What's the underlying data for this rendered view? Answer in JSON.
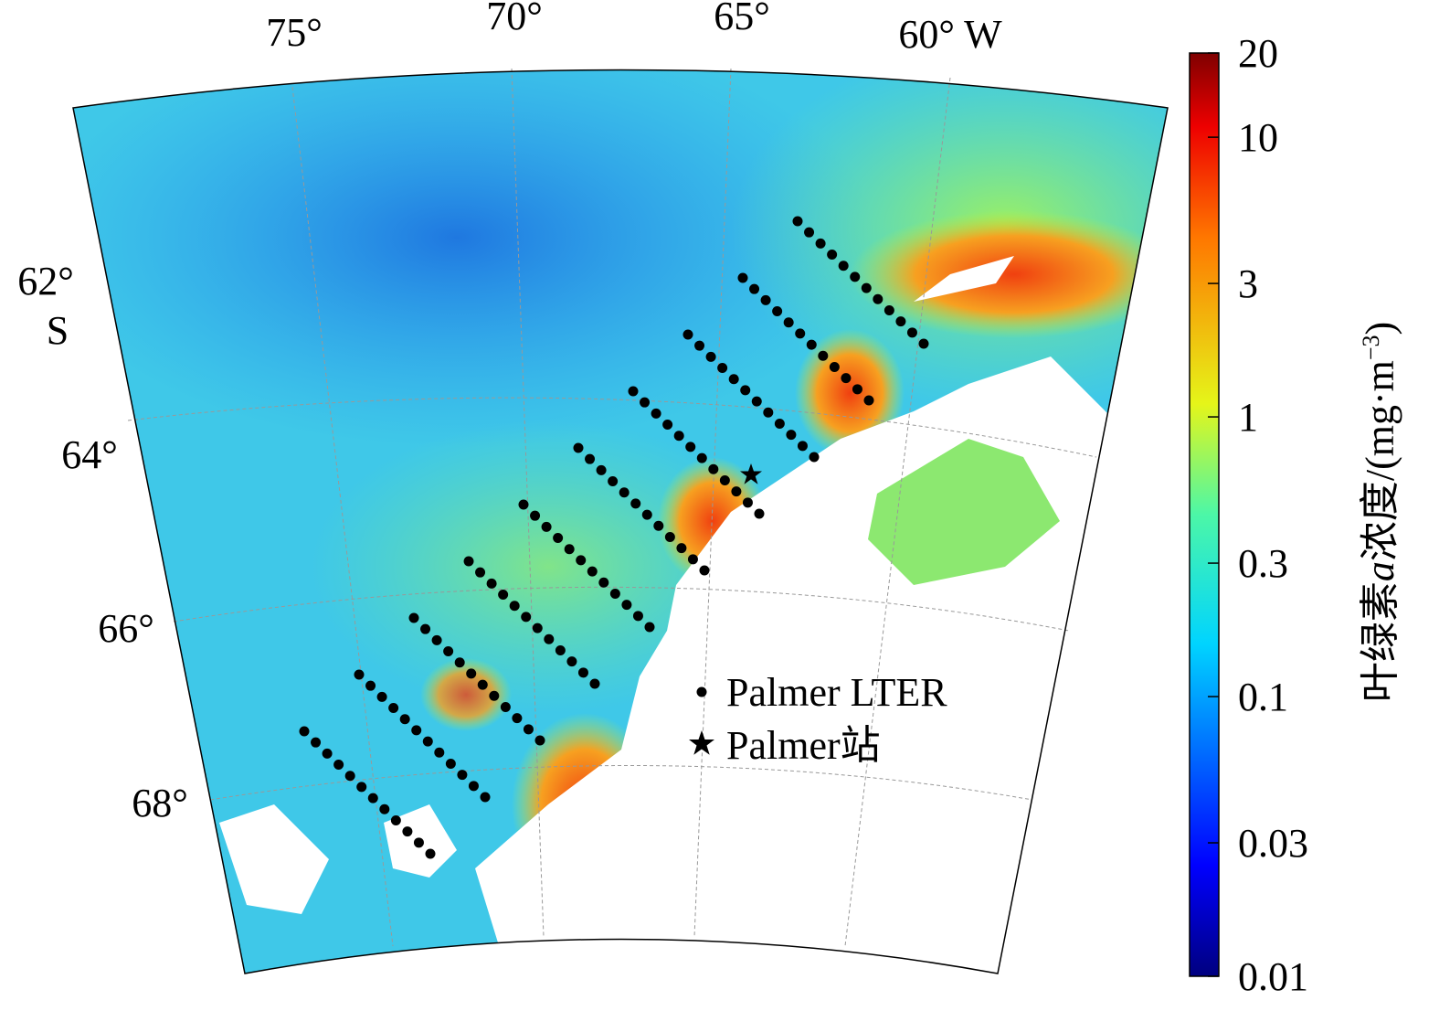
{
  "map": {
    "lon_labels": [
      "75°",
      "70°",
      "65°",
      "60° W"
    ],
    "lat_labels": [
      "62°",
      "S",
      "64°",
      "66°",
      "68°"
    ],
    "legend": [
      "Palmer LTER",
      "Palmer站"
    ]
  },
  "colorbar": {
    "type": "colorbar",
    "log_scale": true,
    "lim": [
      0.01,
      20
    ],
    "ticks": [
      0.01,
      0.03,
      0.1,
      0.3,
      1,
      3,
      10,
      20
    ],
    "label": [
      "叶绿素",
      "a",
      "浓度/(mg·m",
      "−3",
      ")"
    ]
  }
}
